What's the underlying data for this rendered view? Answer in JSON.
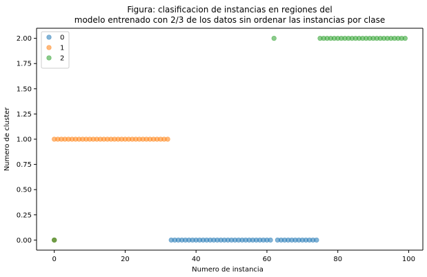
{
  "chart_data": {
    "type": "scatter",
    "title": "Figura: clasificacion de instancias en regiones del\nmodelo entrenado con 2/3 de los datos sin ordenar las instancias por clase",
    "xlabel": "Numero de instancia",
    "ylabel": "Numero de cluster",
    "xlim": [
      -5,
      104
    ],
    "ylim": [
      -0.1,
      2.1
    ],
    "xticks": [
      0,
      20,
      40,
      60,
      80,
      100
    ],
    "xtick_labels": [
      "0",
      "20",
      "40",
      "60",
      "80",
      "100"
    ],
    "yticks": [
      0.0,
      0.25,
      0.5,
      0.75,
      1.0,
      1.25,
      1.5,
      1.75,
      2.0
    ],
    "ytick_labels": [
      "0.00",
      "0.25",
      "0.50",
      "0.75",
      "1.00",
      "1.25",
      "1.50",
      "1.75",
      "2.00"
    ],
    "grid": false,
    "legend_position": "top-left",
    "series": [
      {
        "name": "0",
        "color": "#1f77b4",
        "points": [
          [
            0,
            0
          ],
          [
            33,
            0
          ],
          [
            34,
            0
          ],
          [
            35,
            0
          ],
          [
            36,
            0
          ],
          [
            37,
            0
          ],
          [
            38,
            0
          ],
          [
            39,
            0
          ],
          [
            40,
            0
          ],
          [
            41,
            0
          ],
          [
            42,
            0
          ],
          [
            43,
            0
          ],
          [
            44,
            0
          ],
          [
            45,
            0
          ],
          [
            46,
            0
          ],
          [
            47,
            0
          ],
          [
            48,
            0
          ],
          [
            49,
            0
          ],
          [
            50,
            0
          ],
          [
            51,
            0
          ],
          [
            52,
            0
          ],
          [
            53,
            0
          ],
          [
            54,
            0
          ],
          [
            55,
            0
          ],
          [
            56,
            0
          ],
          [
            57,
            0
          ],
          [
            58,
            0
          ],
          [
            59,
            0
          ],
          [
            60,
            0
          ],
          [
            61,
            0
          ],
          [
            63,
            0
          ],
          [
            64,
            0
          ],
          [
            65,
            0
          ],
          [
            66,
            0
          ],
          [
            67,
            0
          ],
          [
            68,
            0
          ],
          [
            69,
            0
          ],
          [
            70,
            0
          ],
          [
            71,
            0
          ],
          [
            72,
            0
          ],
          [
            73,
            0
          ],
          [
            74,
            0
          ]
        ]
      },
      {
        "name": "1",
        "color": "#ff7f0e",
        "points": [
          [
            0,
            0
          ],
          [
            0,
            1
          ],
          [
            1,
            1
          ],
          [
            2,
            1
          ],
          [
            3,
            1
          ],
          [
            4,
            1
          ],
          [
            5,
            1
          ],
          [
            6,
            1
          ],
          [
            7,
            1
          ],
          [
            8,
            1
          ],
          [
            9,
            1
          ],
          [
            10,
            1
          ],
          [
            11,
            1
          ],
          [
            12,
            1
          ],
          [
            13,
            1
          ],
          [
            14,
            1
          ],
          [
            15,
            1
          ],
          [
            16,
            1
          ],
          [
            17,
            1
          ],
          [
            18,
            1
          ],
          [
            19,
            1
          ],
          [
            20,
            1
          ],
          [
            21,
            1
          ],
          [
            22,
            1
          ],
          [
            23,
            1
          ],
          [
            24,
            1
          ],
          [
            25,
            1
          ],
          [
            26,
            1
          ],
          [
            27,
            1
          ],
          [
            28,
            1
          ],
          [
            29,
            1
          ],
          [
            30,
            1
          ],
          [
            31,
            1
          ],
          [
            32,
            1
          ]
        ]
      },
      {
        "name": "2",
        "color": "#2ca02c",
        "points": [
          [
            0,
            0
          ],
          [
            62,
            2
          ],
          [
            75,
            2
          ],
          [
            76,
            2
          ],
          [
            77,
            2
          ],
          [
            78,
            2
          ],
          [
            79,
            2
          ],
          [
            80,
            2
          ],
          [
            81,
            2
          ],
          [
            82,
            2
          ],
          [
            83,
            2
          ],
          [
            84,
            2
          ],
          [
            85,
            2
          ],
          [
            86,
            2
          ],
          [
            87,
            2
          ],
          [
            88,
            2
          ],
          [
            89,
            2
          ],
          [
            90,
            2
          ],
          [
            91,
            2
          ],
          [
            92,
            2
          ],
          [
            93,
            2
          ],
          [
            94,
            2
          ],
          [
            95,
            2
          ],
          [
            96,
            2
          ],
          [
            97,
            2
          ],
          [
            98,
            2
          ],
          [
            99,
            2
          ]
        ]
      }
    ]
  }
}
